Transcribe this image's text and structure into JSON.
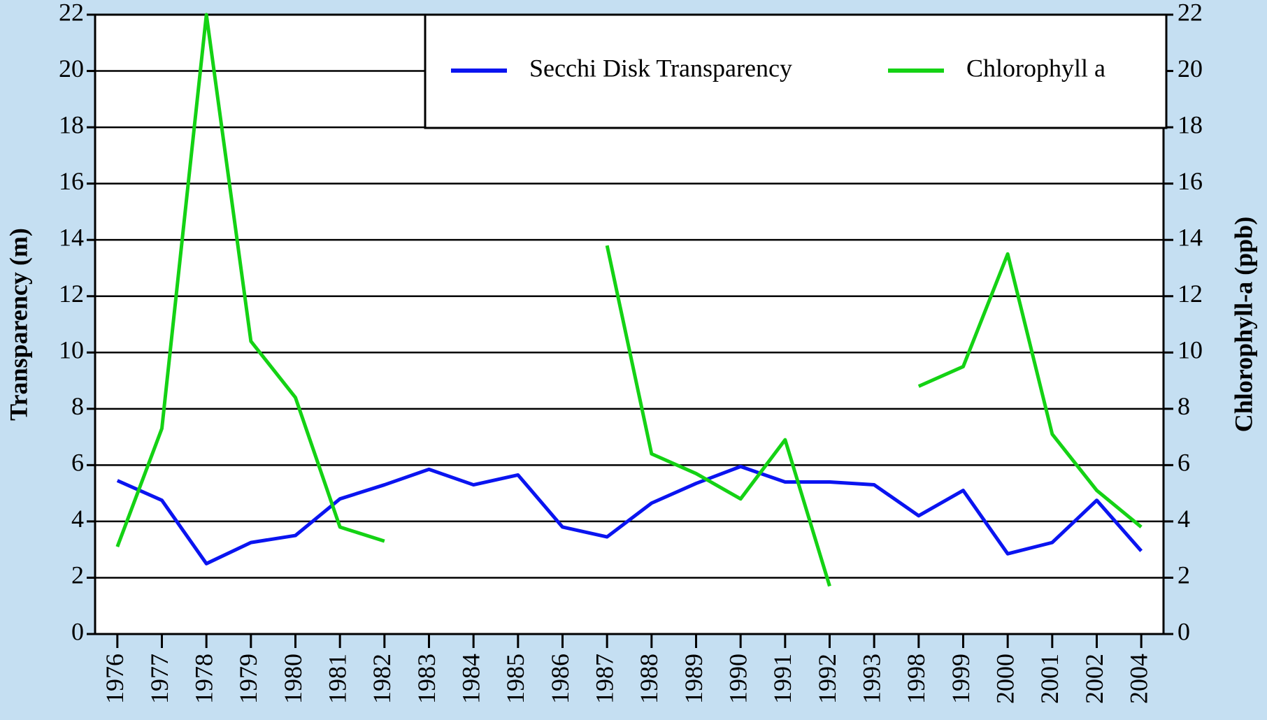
{
  "chart_data": {
    "type": "line",
    "categories": [
      "1976",
      "1977",
      "1978",
      "1979",
      "1980",
      "1981",
      "1982",
      "1983",
      "1984",
      "1985",
      "1986",
      "1987",
      "1988",
      "1989",
      "1990",
      "1991",
      "1992",
      "1993",
      "1998",
      "1999",
      "2000",
      "2001",
      "2002",
      "2004"
    ],
    "series": [
      {
        "name": "Secchi Disk Transparency",
        "color": "#0a14f0",
        "values": [
          5.45,
          4.75,
          2.5,
          3.25,
          3.5,
          4.8,
          5.3,
          5.85,
          5.3,
          5.65,
          3.8,
          3.45,
          4.65,
          5.35,
          5.95,
          5.4,
          5.4,
          5.3,
          4.2,
          5.1,
          2.85,
          3.25,
          4.75,
          2.95
        ]
      },
      {
        "name": "Chlorophyll a",
        "color": "#14d214",
        "axis": "y2",
        "values": [
          3.1,
          7.3,
          22,
          10.4,
          8.4,
          3.8,
          3.3,
          null,
          null,
          null,
          null,
          13.8,
          6.4,
          5.7,
          4.8,
          6.9,
          1.7,
          null,
          8.8,
          9.5,
          13.5,
          7.1,
          5.1,
          3.8
        ]
      }
    ],
    "ylabel": "Transparency (m)",
    "y2label": "Chlorophyll-a (ppb)",
    "ylim": [
      0,
      22
    ],
    "yticks": [
      0,
      2,
      4,
      6,
      8,
      10,
      12,
      14,
      16,
      18,
      20,
      22
    ],
    "y2lim": [
      0,
      22
    ],
    "y2ticks": [
      0,
      2,
      4,
      6,
      8,
      10,
      12,
      14,
      16,
      18,
      20,
      22
    ],
    "grid": true,
    "legend": "upper right"
  }
}
